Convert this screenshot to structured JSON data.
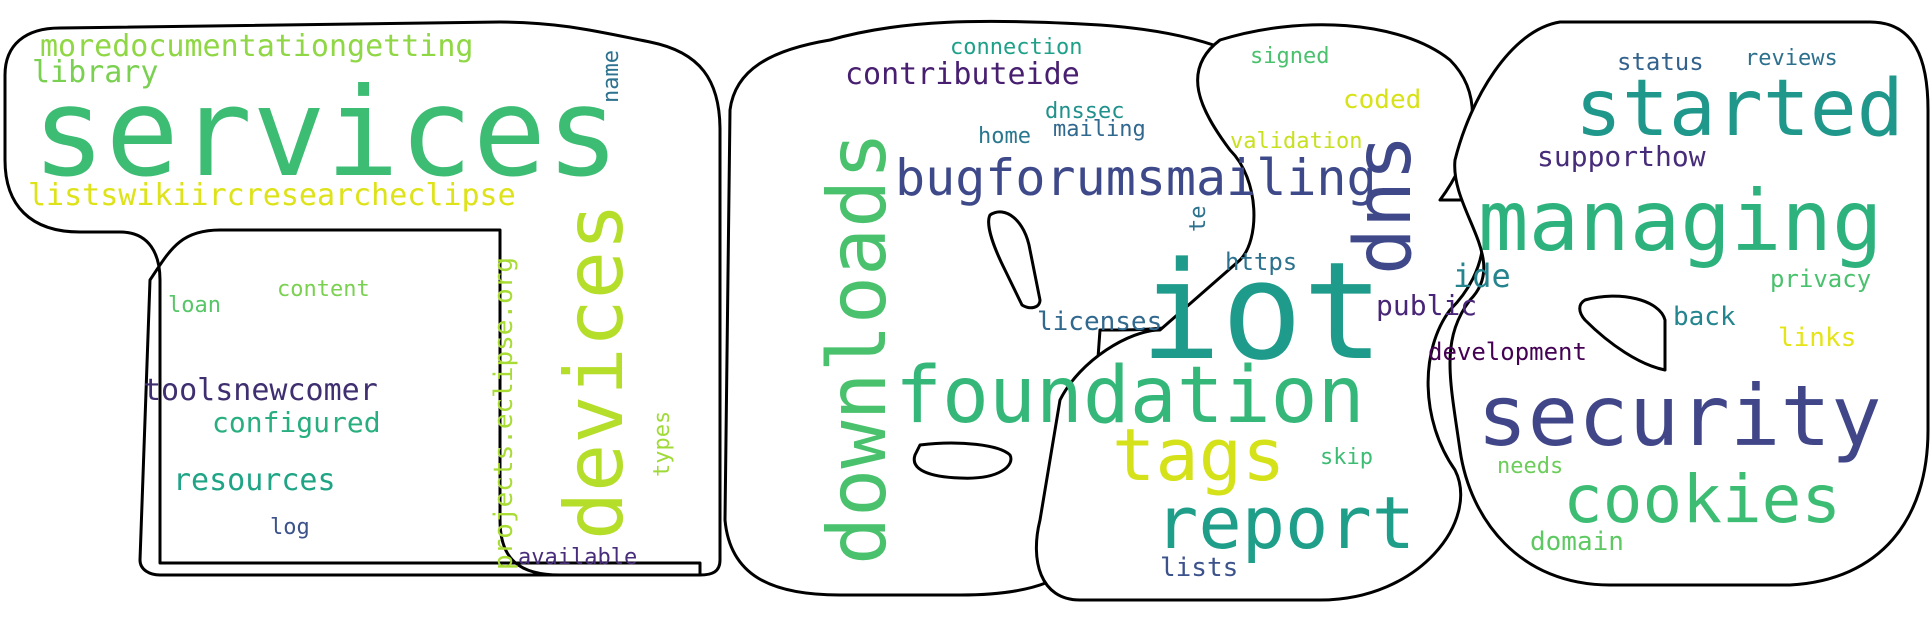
{
  "words": [
    {
      "text": "services",
      "color": "#3dbc74"
    },
    {
      "text": "moredocumentationgetting",
      "color": "#8fd744"
    },
    {
      "text": "library",
      "color": "#7ad151"
    },
    {
      "text": "listswikiircresearcheclipse",
      "color": "#dde318"
    },
    {
      "text": "name",
      "color": "#2c728e"
    },
    {
      "text": "devices",
      "color": "#b5de2b"
    },
    {
      "text": "projects.eclipse.org",
      "color": "#a8db34"
    },
    {
      "text": "content",
      "color": "#7ad151"
    },
    {
      "text": "loan",
      "color": "#56c667"
    },
    {
      "text": "toolsnewcomer",
      "color": "#3f2f70"
    },
    {
      "text": "configured",
      "color": "#29af7f"
    },
    {
      "text": "resources",
      "color": "#20a486"
    },
    {
      "text": "types",
      "color": "#a0da39"
    },
    {
      "text": "log",
      "color": "#3b528b"
    },
    {
      "text": "available",
      "color": "#472d7b"
    },
    {
      "text": "connection",
      "color": "#1fa088"
    },
    {
      "text": "contributeide",
      "color": "#481f70"
    },
    {
      "text": "downloads",
      "color": "#4ac16d"
    },
    {
      "text": "dnssec",
      "color": "#21918c"
    },
    {
      "text": "home",
      "color": "#2a788e"
    },
    {
      "text": "mailing",
      "color": "#31688e"
    },
    {
      "text": "signed",
      "color": "#4ac16d"
    },
    {
      "text": "coded",
      "color": "#d8e219"
    },
    {
      "text": "validation",
      "color": "#c8e020"
    },
    {
      "text": "bugforumsmailing",
      "color": "#3e4989"
    },
    {
      "text": "dns",
      "color": "#3f4889"
    },
    {
      "text": "te",
      "color": "#2c728e"
    },
    {
      "text": "iot",
      "color": "#1e9b8a"
    },
    {
      "text": "https",
      "color": "#2c728e"
    },
    {
      "text": "licenses",
      "color": "#31688e"
    },
    {
      "text": "foundation",
      "color": "#35b779"
    },
    {
      "text": "tags",
      "color": "#d5e21a"
    },
    {
      "text": "report",
      "color": "#1f9e89"
    },
    {
      "text": "lists",
      "color": "#3b528b"
    },
    {
      "text": "skip",
      "color": "#3dbc74"
    },
    {
      "text": "ide",
      "color": "#25848e"
    },
    {
      "text": "public",
      "color": "#482576"
    },
    {
      "text": "development",
      "color": "#440154"
    },
    {
      "text": "status",
      "color": "#33638d"
    },
    {
      "text": "reviews",
      "color": "#2d708e"
    },
    {
      "text": "started",
      "color": "#1f988b"
    },
    {
      "text": "supporthow",
      "color": "#472c7a"
    },
    {
      "text": "managing",
      "color": "#2db27d"
    },
    {
      "text": "privacy",
      "color": "#4ac16d"
    },
    {
      "text": "back",
      "color": "#25858e"
    },
    {
      "text": "links",
      "color": "#e5e419"
    },
    {
      "text": "security",
      "color": "#404688"
    },
    {
      "text": "needs",
      "color": "#6ccd5a"
    },
    {
      "text": "cookies",
      "color": "#3dbc74"
    },
    {
      "text": "domain",
      "color": "#5ec962"
    }
  ]
}
